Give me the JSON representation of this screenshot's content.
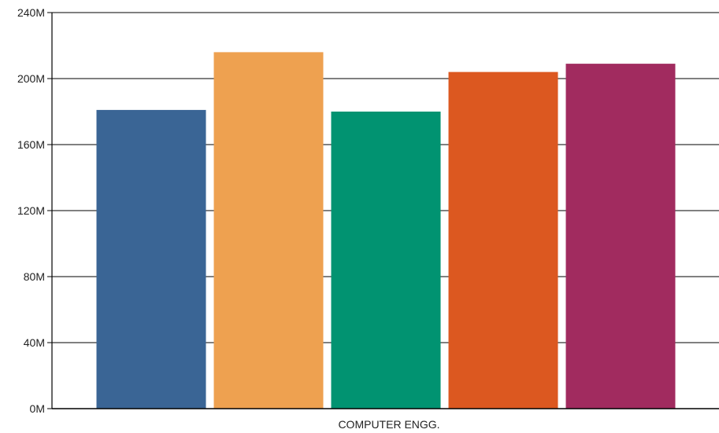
{
  "chart_data": {
    "type": "bar",
    "categories": [
      "COMPUTER ENGG."
    ],
    "series": [
      {
        "values": [
          181
        ],
        "color": "#3a6595"
      },
      {
        "values": [
          216
        ],
        "color": "#eea150"
      },
      {
        "values": [
          180
        ],
        "color": "#019371"
      },
      {
        "values": [
          204
        ],
        "color": "#dc5820"
      },
      {
        "values": [
          209
        ],
        "color": "#a12b5f"
      }
    ],
    "unit": "M",
    "ylim": [
      0,
      240
    ],
    "yticks": [
      0,
      40,
      80,
      120,
      160,
      200,
      240
    ],
    "ytick_labels": [
      "0M",
      "40M",
      "80M",
      "120M",
      "160M",
      "200M",
      "240M"
    ],
    "grid": "horizontal",
    "legend": "none",
    "title": "",
    "xlabel": "",
    "ylabel": ""
  }
}
